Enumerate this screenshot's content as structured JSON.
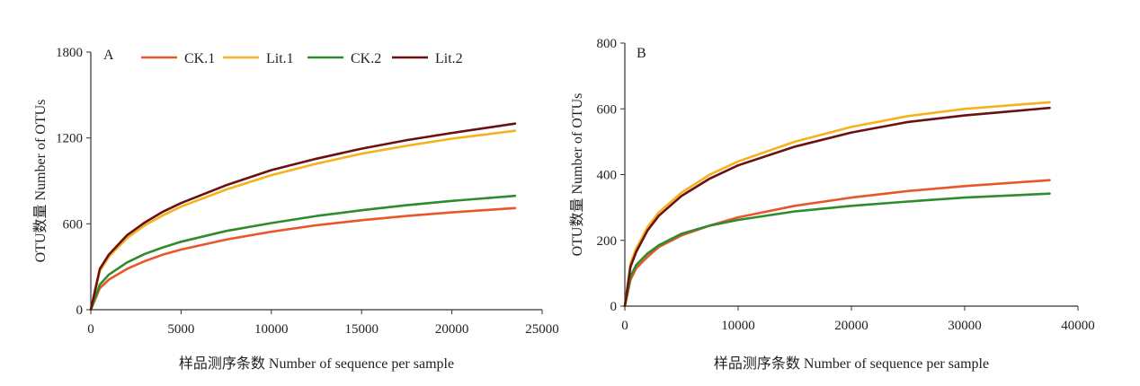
{
  "chart_data": [
    {
      "type": "line",
      "panel_label": "A",
      "xlabel": "样品测序条数 Number of sequence per sample",
      "ylabel": "OTU数量 Number of OTUs",
      "xlim": [
        0,
        25000
      ],
      "ylim": [
        0,
        1800
      ],
      "xticks": [
        0,
        5000,
        10000,
        15000,
        20000,
        25000
      ],
      "yticks": [
        0,
        600,
        1200,
        1800
      ],
      "grid": false,
      "legend": "top",
      "series": [
        {
          "name": "CK.1",
          "color": "#e8562a",
          "points": [
            [
              0,
              0
            ],
            [
              500,
              150
            ],
            [
              1000,
              210
            ],
            [
              2000,
              285
            ],
            [
              3000,
              340
            ],
            [
              4000,
              385
            ],
            [
              5000,
              420
            ],
            [
              7500,
              490
            ],
            [
              10000,
              545
            ],
            [
              12500,
              590
            ],
            [
              15000,
              625
            ],
            [
              17500,
              655
            ],
            [
              20000,
              680
            ],
            [
              23500,
              710
            ]
          ]
        },
        {
          "name": "Lit.1",
          "color": "#f5b21b",
          "points": [
            [
              0,
              0
            ],
            [
              500,
              270
            ],
            [
              1000,
              370
            ],
            [
              2000,
              500
            ],
            [
              3000,
              590
            ],
            [
              4000,
              660
            ],
            [
              5000,
              720
            ],
            [
              7500,
              840
            ],
            [
              10000,
              940
            ],
            [
              12500,
              1020
            ],
            [
              15000,
              1090
            ],
            [
              17500,
              1145
            ],
            [
              20000,
              1195
            ],
            [
              23500,
              1250
            ]
          ]
        },
        {
          "name": "CK.2",
          "color": "#2e8b2e",
          "points": [
            [
              0,
              0
            ],
            [
              500,
              175
            ],
            [
              1000,
              245
            ],
            [
              2000,
              330
            ],
            [
              3000,
              390
            ],
            [
              4000,
              435
            ],
            [
              5000,
              475
            ],
            [
              7500,
              550
            ],
            [
              10000,
              605
            ],
            [
              12500,
              655
            ],
            [
              15000,
              695
            ],
            [
              17500,
              730
            ],
            [
              20000,
              760
            ],
            [
              23500,
              795
            ]
          ]
        },
        {
          "name": "Lit.2",
          "color": "#6b1010",
          "points": [
            [
              0,
              0
            ],
            [
              500,
              285
            ],
            [
              1000,
              385
            ],
            [
              2000,
              520
            ],
            [
              3000,
              610
            ],
            [
              4000,
              685
            ],
            [
              5000,
              745
            ],
            [
              7500,
              870
            ],
            [
              10000,
              975
            ],
            [
              12500,
              1055
            ],
            [
              15000,
              1125
            ],
            [
              17500,
              1185
            ],
            [
              20000,
              1235
            ],
            [
              23500,
              1300
            ]
          ]
        }
      ]
    },
    {
      "type": "line",
      "panel_label": "B",
      "xlabel": "样品测序条数 Number of sequence per sample",
      "ylabel": "OTU数量 Number of OTUs",
      "xlim": [
        0,
        40000
      ],
      "ylim": [
        0,
        800
      ],
      "xticks": [
        0,
        10000,
        20000,
        30000,
        40000
      ],
      "yticks": [
        0,
        200,
        400,
        600,
        800
      ],
      "grid": false,
      "legend": "none",
      "series": [
        {
          "name": "CK.1",
          "color": "#e8562a",
          "points": [
            [
              0,
              0
            ],
            [
              500,
              80
            ],
            [
              1000,
              115
            ],
            [
              2000,
              150
            ],
            [
              3000,
              180
            ],
            [
              5000,
              215
            ],
            [
              7500,
              245
            ],
            [
              10000,
              270
            ],
            [
              15000,
              305
            ],
            [
              20000,
              330
            ],
            [
              25000,
              350
            ],
            [
              30000,
              365
            ],
            [
              37500,
              383
            ]
          ]
        },
        {
          "name": "Lit.1",
          "color": "#f5b21b",
          "points": [
            [
              0,
              0
            ],
            [
              500,
              130
            ],
            [
              1000,
              175
            ],
            [
              2000,
              240
            ],
            [
              3000,
              285
            ],
            [
              5000,
              345
            ],
            [
              7500,
              400
            ],
            [
              10000,
              440
            ],
            [
              15000,
              500
            ],
            [
              20000,
              545
            ],
            [
              25000,
              578
            ],
            [
              30000,
              600
            ],
            [
              37500,
              620
            ]
          ]
        },
        {
          "name": "CK.2",
          "color": "#2e8b2e",
          "points": [
            [
              0,
              0
            ],
            [
              500,
              90
            ],
            [
              1000,
              125
            ],
            [
              2000,
              160
            ],
            [
              3000,
              185
            ],
            [
              5000,
              220
            ],
            [
              7500,
              245
            ],
            [
              10000,
              262
            ],
            [
              15000,
              288
            ],
            [
              20000,
              305
            ],
            [
              25000,
              318
            ],
            [
              30000,
              330
            ],
            [
              37500,
              342
            ]
          ]
        },
        {
          "name": "Lit.2",
          "color": "#6b1010",
          "points": [
            [
              0,
              0
            ],
            [
              500,
              120
            ],
            [
              1000,
              165
            ],
            [
              2000,
              230
            ],
            [
              3000,
              275
            ],
            [
              5000,
              335
            ],
            [
              7500,
              388
            ],
            [
              10000,
              428
            ],
            [
              15000,
              485
            ],
            [
              20000,
              528
            ],
            [
              25000,
              560
            ],
            [
              30000,
              580
            ],
            [
              37500,
              603
            ]
          ]
        }
      ]
    }
  ]
}
